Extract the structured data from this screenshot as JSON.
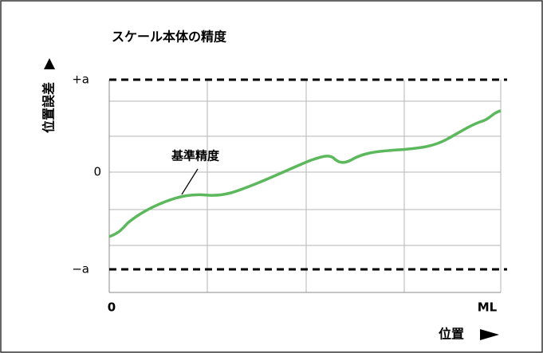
{
  "title": "スケール本体の精度",
  "y_axis": {
    "label": "位置誤差",
    "ticks": [
      "+a",
      "0",
      "−a"
    ]
  },
  "x_axis": {
    "label": "位置",
    "start": "0",
    "end": "ML"
  },
  "annotation": "基準精度"
}
